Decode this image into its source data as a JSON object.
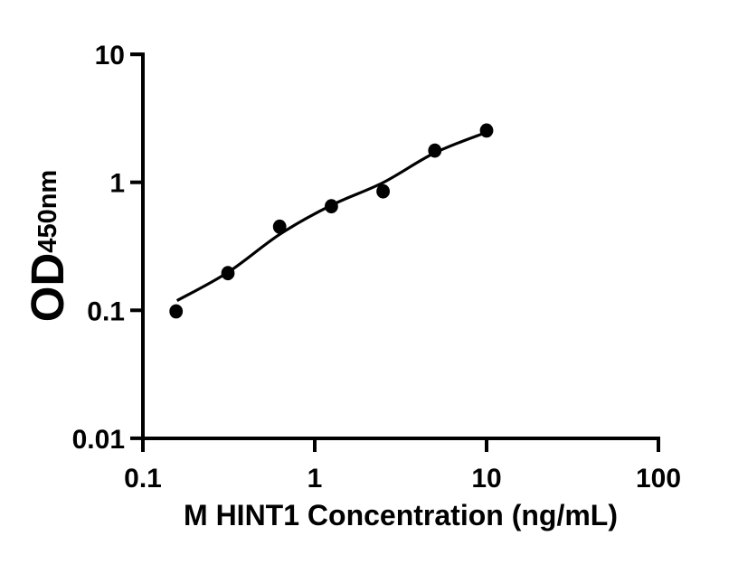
{
  "figure": {
    "background_color": "#ffffff",
    "ink_color": "#000000"
  },
  "chart_data": {
    "type": "scatter",
    "title": "",
    "xlabel": "M HINT1 Concentration (ng/mL)",
    "ylabel_main": "OD",
    "ylabel_sub": "450nm",
    "x_scale": "log",
    "y_scale": "log",
    "xlim": [
      0.1,
      100
    ],
    "ylim": [
      0.01,
      10
    ],
    "grid": false,
    "legend": false,
    "x_ticks": [
      {
        "value": 0.1,
        "label": "0.1"
      },
      {
        "value": 1,
        "label": "1"
      },
      {
        "value": 10,
        "label": "10"
      },
      {
        "value": 100,
        "label": "100"
      }
    ],
    "y_ticks": [
      {
        "value": 0.01,
        "label": "0.01"
      },
      {
        "value": 0.1,
        "label": "0.1"
      },
      {
        "value": 1,
        "label": "1"
      },
      {
        "value": 10,
        "label": "10"
      }
    ],
    "series": [
      {
        "marker": "filled-circle",
        "color": "#000000",
        "points": [
          {
            "x": 0.156,
            "y": 0.098
          },
          {
            "x": 0.3125,
            "y": 0.195
          },
          {
            "x": 0.625,
            "y": 0.45
          },
          {
            "x": 1.25,
            "y": 0.65
          },
          {
            "x": 2.5,
            "y": 0.85
          },
          {
            "x": 5,
            "y": 1.77
          },
          {
            "x": 10,
            "y": 2.54
          }
        ]
      }
    ],
    "fit_curve": {
      "color": "#000000",
      "points": [
        {
          "x": 0.158,
          "y": 0.119
        },
        {
          "x": 0.3125,
          "y": 0.198
        },
        {
          "x": 0.625,
          "y": 0.392
        },
        {
          "x": 1.25,
          "y": 0.662
        },
        {
          "x": 2.5,
          "y": 0.995
        },
        {
          "x": 5,
          "y": 1.7
        },
        {
          "x": 10,
          "y": 2.46
        }
      ]
    }
  }
}
